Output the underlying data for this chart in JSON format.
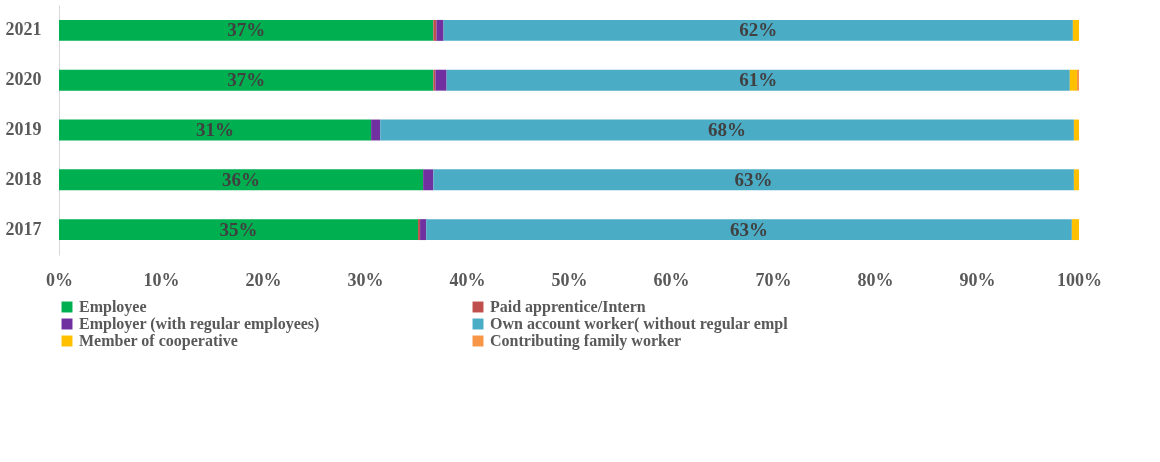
{
  "chart_data": {
    "type": "bar",
    "orientation": "horizontal",
    "stacked": true,
    "categories": [
      "2021",
      "2020",
      "2019",
      "2018",
      "2017"
    ],
    "series": [
      {
        "name": "Employee",
        "color": "#00b050",
        "values": [
          36.7,
          36.7,
          30.6,
          35.7,
          35.2
        ],
        "value_labels": [
          "37%",
          "37%",
          "31%",
          "36%",
          "35%"
        ]
      },
      {
        "name": "Paid apprentice/Intern",
        "color": "#c0504d",
        "values": [
          0.3,
          0.2,
          0,
          0,
          0.2
        ],
        "value_labels": [
          null,
          null,
          null,
          null,
          null
        ]
      },
      {
        "name": "Employer (with regular employees)",
        "color": "#7030a0",
        "values": [
          0.7,
          1.1,
          0.9,
          1.0,
          0.6
        ],
        "value_labels": [
          null,
          null,
          null,
          null,
          null
        ]
      },
      {
        "name": "Own account worker( without regular empl",
        "color": "#4bacc6",
        "values": [
          61.7,
          61.1,
          68.0,
          62.8,
          63.3
        ],
        "value_labels": [
          "62%",
          "61%",
          "68%",
          "63%",
          "63%"
        ]
      },
      {
        "name": "Member of cooperative",
        "color": "#ffc000",
        "values": [
          0.6,
          0.7,
          0.5,
          0.5,
          0.7
        ],
        "value_labels": [
          null,
          null,
          null,
          null,
          null
        ]
      },
      {
        "name": "Contributing family worker",
        "color": "#f79646",
        "values": [
          0,
          0.2,
          0,
          0,
          0
        ],
        "value_labels": [
          null,
          null,
          null,
          null,
          null
        ]
      }
    ],
    "xlim": [
      0,
      100
    ],
    "xticks": [
      {
        "value": 0,
        "label": "0%"
      },
      {
        "value": 10,
        "label": "10%"
      },
      {
        "value": 20,
        "label": "20%"
      },
      {
        "value": 30,
        "label": "30%"
      },
      {
        "value": 40,
        "label": "40%"
      },
      {
        "value": 50,
        "label": "50%"
      },
      {
        "value": 60,
        "label": "60%"
      },
      {
        "value": 70,
        "label": "70%"
      },
      {
        "value": 80,
        "label": "80%"
      },
      {
        "value": 90,
        "label": "90%"
      },
      {
        "value": 100,
        "label": "100%"
      }
    ],
    "grid": false,
    "legend": "bottom"
  }
}
